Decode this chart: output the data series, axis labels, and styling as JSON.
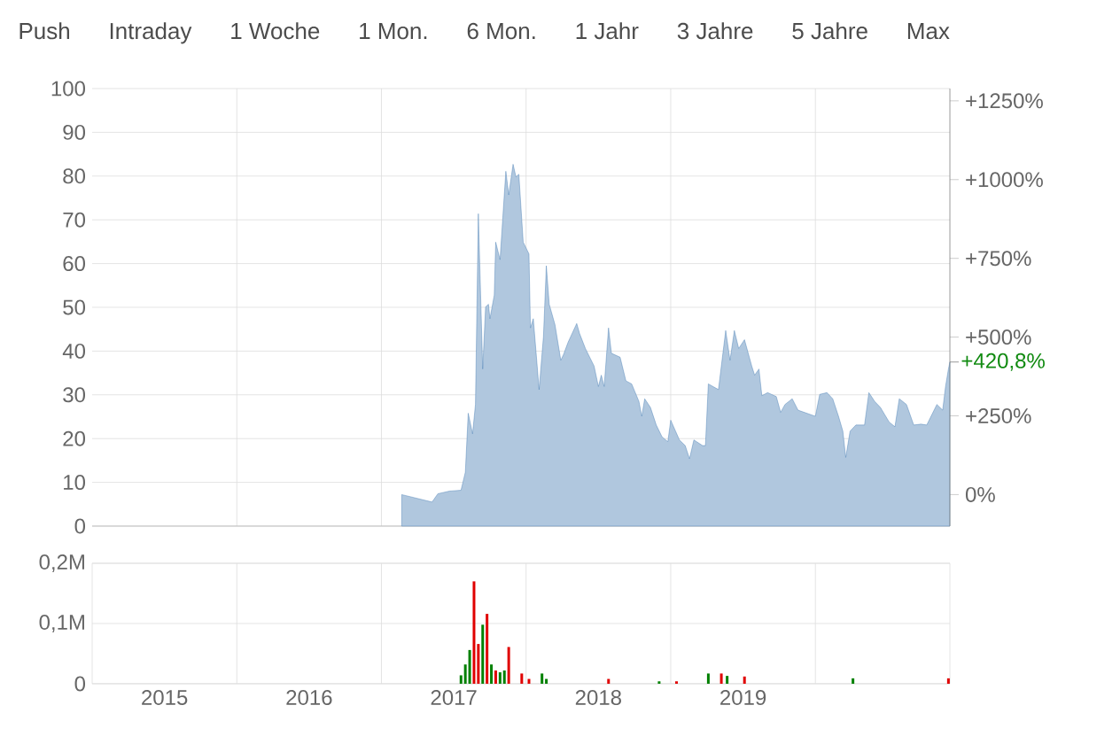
{
  "chart_data": [
    {
      "type": "area",
      "annotations": [
        "Push",
        "Intraday",
        "1 Woche",
        "1 Mon.",
        "6 Mon.",
        "1 Jahr",
        "3 Jahre",
        "5 Jahre",
        "Max",
        {
          "text": "+420,8%",
          "x": 2020.43,
          "y": 37.5
        }
      ],
      "xlim": [
        2014.5,
        2020.43
      ],
      "ylim": [
        0,
        100
      ],
      "y2lim": [
        -100,
        1289
      ],
      "xticks": [
        {
          "value": 2015.5,
          "label": null
        },
        {
          "value": 2016.5,
          "label": null
        },
        {
          "value": 2017.5,
          "label": null
        },
        {
          "value": 2018.5,
          "label": null
        },
        {
          "value": 2019.5,
          "label": null
        }
      ],
      "yticks": [
        0,
        10,
        20,
        30,
        40,
        50,
        60,
        70,
        80,
        90,
        100
      ],
      "y2ticks": [
        {
          "value": 0,
          "label": "0%"
        },
        {
          "value": 250,
          "label": "+250%"
        },
        {
          "value": 500,
          "label": "+500%"
        },
        {
          "value": 750,
          "label": "+750%"
        },
        {
          "value": 1000,
          "label": "+1000%"
        },
        {
          "value": 1250,
          "label": "+1250%"
        }
      ],
      "tick_labels": "y",
      "grid": true,
      "marker": "none",
      "series": [
        {
          "color": "#3a74ad",
          "x": [
            2016.64,
            2016.85,
            2016.89,
            2016.97,
            2017.05,
            2017.08,
            2017.1,
            2017.13,
            2017.15,
            2017.17,
            2017.2,
            2017.22,
            2017.24,
            2017.25,
            2017.28,
            2017.29,
            2017.32,
            2017.36,
            2017.38,
            2017.41,
            2017.43,
            2017.45,
            2017.48,
            2017.52,
            2017.53,
            2017.55,
            2017.59,
            2017.62,
            2017.64,
            2017.66,
            2017.7,
            2017.74,
            2017.76,
            2017.79,
            2017.85,
            2017.87,
            2017.91,
            2017.97,
            2018.0,
            2018.02,
            2018.04,
            2018.07,
            2018.09,
            2018.15,
            2018.19,
            2018.23,
            2018.28,
            2018.3,
            2018.32,
            2018.36,
            2018.4,
            2018.44,
            2018.48,
            2018.5,
            2018.56,
            2018.6,
            2018.63,
            2018.66,
            2018.72,
            2018.74,
            2018.76,
            2018.83,
            2018.88,
            2018.91,
            2018.94,
            2018.97,
            2019.01,
            2019.06,
            2019.08,
            2019.11,
            2019.13,
            2019.17,
            2019.23,
            2019.26,
            2019.29,
            2019.34,
            2019.38,
            2019.44,
            2019.5,
            2019.53,
            2019.58,
            2019.62,
            2019.66,
            2019.69,
            2019.71,
            2019.74,
            2019.78,
            2019.84,
            2019.87,
            2019.91,
            2019.95,
            2020.01,
            2020.05,
            2020.08,
            2020.13,
            2020.18,
            2020.23,
            2020.27,
            2020.34,
            2020.38,
            2020.4,
            2020.42,
            2020.43
          ],
          "values": [
            7.2,
            5.5,
            7.4,
            8.0,
            8.2,
            12.3,
            25.8,
            21.1,
            27.8,
            71.4,
            35.9,
            50.1,
            50.7,
            47.4,
            52.8,
            64.9,
            60.9,
            81.1,
            75.7,
            82.7,
            79.8,
            80.4,
            64.9,
            62.2,
            45.3,
            47.4,
            31.2,
            43.3,
            59.5,
            50.7,
            46.0,
            37.9,
            39.3,
            42.0,
            46.3,
            44.0,
            40.6,
            36.6,
            31.9,
            34.5,
            31.9,
            45.3,
            39.5,
            38.6,
            33.2,
            32.5,
            28.5,
            25.1,
            29.1,
            27.1,
            23.1,
            20.4,
            19.3,
            24.2,
            19.7,
            18.4,
            15.4,
            19.7,
            18.4,
            18.4,
            32.5,
            31.2,
            44.7,
            37.9,
            44.7,
            40.6,
            42.6,
            36.6,
            34.5,
            35.9,
            29.8,
            30.5,
            29.6,
            26.0,
            27.8,
            29.1,
            26.5,
            25.8,
            25.1,
            30.1,
            30.5,
            29.1,
            25.1,
            21.7,
            15.7,
            21.7,
            23.1,
            23.1,
            30.5,
            28.5,
            27.1,
            23.8,
            22.7,
            29.1,
            27.8,
            23.1,
            23.3,
            23.1,
            27.8,
            26.5,
            31.9,
            35.9,
            37.5
          ]
        }
      ]
    },
    {
      "type": "bar",
      "xlim": [
        2014.5,
        2020.43
      ],
      "ylim": [
        0,
        0.2
      ],
      "xticks": [
        {
          "value": 2015.5,
          "label": null
        },
        {
          "value": 2016.5,
          "label": null
        },
        {
          "value": 2017.5,
          "label": null
        },
        {
          "value": 2018.5,
          "label": null
        },
        {
          "value": 2019.5,
          "label": null
        },
        2015,
        2016,
        2017,
        2018,
        2019
      ],
      "yticks": [
        {
          "value": 0,
          "label": "0"
        },
        {
          "value": 0.1,
          "label": "0,1M"
        },
        {
          "value": 0.2,
          "label": "0,2M"
        }
      ],
      "grid": true,
      "series": [
        {
          "color": "#008000",
          "x": [
            2017.05,
            2017.08,
            2017.11,
            2017.2,
            2017.26,
            2017.32,
            2017.35,
            2017.61,
            2017.64,
            2018.42,
            2018.76,
            2018.89,
            2019.76
          ],
          "values": [
            0.014,
            0.032,
            0.056,
            0.098,
            0.032,
            0.019,
            0.022,
            0.017,
            0.008,
            0.004,
            0.017,
            0.013,
            0.009
          ]
        },
        {
          "color": "#e00000",
          "x": [
            2017.14,
            2017.17,
            2017.23,
            2017.29,
            2017.38,
            2017.47,
            2017.52,
            2018.07,
            2018.54,
            2018.85,
            2019.01,
            2020.42
          ],
          "values": [
            0.17,
            0.066,
            0.116,
            0.022,
            0.061,
            0.017,
            0.008,
            0.008,
            0.004,
            0.017,
            0.012,
            0.009
          ]
        }
      ]
    }
  ]
}
